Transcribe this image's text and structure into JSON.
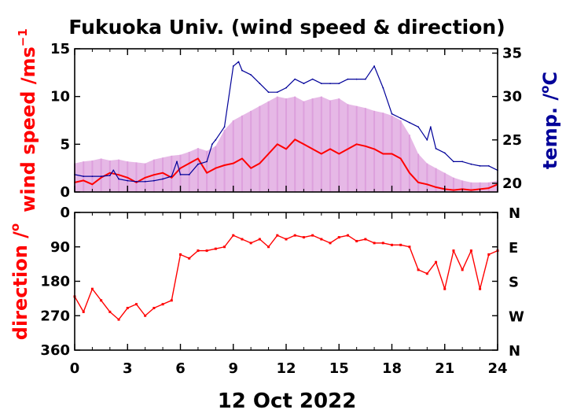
{
  "chart_data": {
    "title": "Fukuoka Univ. (wind speed & direction)",
    "xlabel": "12 Oct 2022",
    "x_ticks": [
      "0",
      "3",
      "6",
      "9",
      "12",
      "15",
      "18",
      "21",
      "24"
    ],
    "xlim": [
      0,
      24
    ],
    "colors": {
      "mean": "#ff0000",
      "gust": "#dda0dd",
      "temp": "#000099",
      "frame": "#000000"
    },
    "panels": [
      {
        "type": "line",
        "ylabel_left": "wind speed /ms",
        "ylabel_left_sup": "−1",
        "ylabel_right": "temp. /",
        "ylabel_right_sup": "o",
        "ylabel_right_unit": "C",
        "ylim_left": [
          0,
          15
        ],
        "ylim_right": [
          19,
          35.5
        ],
        "y_ticks_left": [
          "0",
          "5",
          "10",
          "15"
        ],
        "y_ticks_right": [
          "20",
          "25",
          "30",
          "35"
        ],
        "series": [
          {
            "color": "#dda0dd",
            "style": "gust",
            "x": [
              0,
              0.5,
              1,
              1.5,
              2,
              2.5,
              3,
              3.5,
              4,
              4.5,
              5,
              5.5,
              6,
              6.5,
              7,
              7.5,
              8,
              8.5,
              9,
              9.5,
              10,
              10.5,
              11,
              11.5,
              12,
              12.5,
              13,
              13.5,
              14,
              14.5,
              15,
              15.5,
              16,
              16.5,
              17,
              17.5,
              18,
              18.5,
              19,
              19.5,
              20,
              20.5,
              21,
              21.5,
              22,
              22.5,
              23,
              23.5,
              24
            ],
            "values": [
              3.0,
              3.2,
              3.3,
              3.5,
              3.3,
              3.4,
              3.2,
              3.1,
              3.0,
              3.4,
              3.6,
              3.8,
              3.9,
              4.2,
              4.6,
              4.3,
              4.8,
              6.5,
              7.5,
              8.0,
              8.5,
              9.0,
              9.5,
              10.0,
              9.8,
              10.0,
              9.5,
              9.8,
              10.0,
              9.6,
              9.8,
              9.2,
              9.0,
              8.8,
              8.5,
              8.3,
              8.0,
              7.5,
              6.0,
              4.0,
              3.0,
              2.5,
              2.0,
              1.5,
              1.2,
              1.0,
              1.0,
              1.0,
              1.2
            ]
          },
          {
            "color": "#ff0000",
            "style": "mean",
            "x": [
              0,
              0.5,
              1,
              1.5,
              2,
              2.5,
              3,
              3.5,
              4,
              4.5,
              5,
              5.5,
              6,
              6.5,
              7,
              7.5,
              8,
              8.5,
              9,
              9.5,
              10,
              10.5,
              11,
              11.5,
              12,
              12.5,
              13,
              13.5,
              14,
              14.5,
              15,
              15.5,
              16,
              16.5,
              17,
              17.5,
              18,
              18.5,
              19,
              19.5,
              20,
              20.5,
              21,
              21.5,
              22,
              22.5,
              23,
              23.5,
              24
            ],
            "values": [
              1.0,
              1.2,
              0.8,
              1.5,
              2.0,
              1.8,
              1.5,
              1.0,
              1.5,
              1.8,
              2.0,
              1.5,
              2.5,
              3.0,
              3.5,
              2.0,
              2.5,
              2.8,
              3.0,
              3.5,
              2.5,
              3.0,
              4.0,
              5.0,
              4.5,
              5.5,
              5.0,
              4.5,
              4.0,
              4.5,
              4.0,
              4.5,
              5.0,
              4.8,
              4.5,
              4.0,
              4.0,
              3.5,
              2.0,
              1.0,
              0.8,
              0.5,
              0.3,
              0.2,
              0.3,
              0.2,
              0.3,
              0.4,
              0.8
            ]
          },
          {
            "color": "#000099",
            "style": "temp",
            "axis": "right",
            "x": [
              0,
              0.5,
              1,
              1.5,
              2,
              2.2,
              2.5,
              3,
              3.5,
              4,
              4.5,
              5,
              5.5,
              5.8,
              6,
              6.5,
              7,
              7.5,
              7.8,
              8,
              8.5,
              9,
              9.3,
              9.5,
              10,
              10.5,
              11,
              11.5,
              12,
              12.5,
              13,
              13.5,
              14,
              14.5,
              15,
              15.5,
              16,
              16.5,
              17,
              17.5,
              18,
              18.5,
              19,
              19.5,
              20,
              20.2,
              20.5,
              21,
              21.5,
              22,
              22.5,
              23,
              23.5,
              24
            ],
            "values": [
              21.0,
              20.8,
              20.8,
              20.8,
              20.9,
              21.5,
              20.5,
              20.3,
              20.2,
              20.2,
              20.3,
              20.5,
              20.8,
              22.5,
              21.0,
              21.0,
              22.2,
              22.5,
              24.5,
              25.0,
              26.5,
              33.5,
              34.0,
              33.0,
              32.5,
              31.5,
              30.5,
              30.5,
              31.0,
              32.0,
              31.5,
              32.0,
              31.5,
              31.5,
              31.5,
              32.0,
              32.0,
              32.0,
              33.5,
              31.0,
              28.0,
              27.5,
              27.0,
              26.5,
              25.0,
              26.5,
              24.0,
              23.5,
              22.5,
              22.5,
              22.2,
              22.0,
              22.0,
              21.5
            ]
          }
        ]
      },
      {
        "type": "scatter",
        "ylabel_left": "direction /",
        "ylabel_left_sup": "o",
        "ylim_left": [
          0,
          360
        ],
        "y_ticks_left": [
          "0",
          "90",
          "180",
          "270",
          "360"
        ],
        "y_ticks_right": [
          "N",
          "E",
          "S",
          "W",
          "N"
        ],
        "series": [
          {
            "color": "#ff0000",
            "style": "mean",
            "x": [
              0,
              0.5,
              1,
              1.5,
              2,
              2.5,
              3,
              3.5,
              4,
              4.5,
              5,
              5.5,
              6,
              6.5,
              7,
              7.5,
              8,
              8.5,
              9,
              9.5,
              10,
              10.5,
              11,
              11.5,
              12,
              12.5,
              13,
              13.5,
              14,
              14.5,
              15,
              15.5,
              16,
              16.5,
              17,
              17.5,
              18,
              18.5,
              19,
              19.5,
              20,
              20.5,
              21,
              21.5,
              22,
              22.5,
              23,
              23.5,
              24
            ],
            "values": [
              220,
              260,
              200,
              230,
              260,
              280,
              250,
              240,
              270,
              250,
              240,
              230,
              110,
              120,
              100,
              100,
              95,
              90,
              60,
              70,
              80,
              70,
              90,
              60,
              70,
              60,
              65,
              60,
              70,
              80,
              65,
              60,
              75,
              70,
              80,
              80,
              85,
              85,
              90,
              150,
              160,
              130,
              200,
              100,
              150,
              100,
              200,
              110,
              100
            ]
          }
        ]
      }
    ]
  }
}
